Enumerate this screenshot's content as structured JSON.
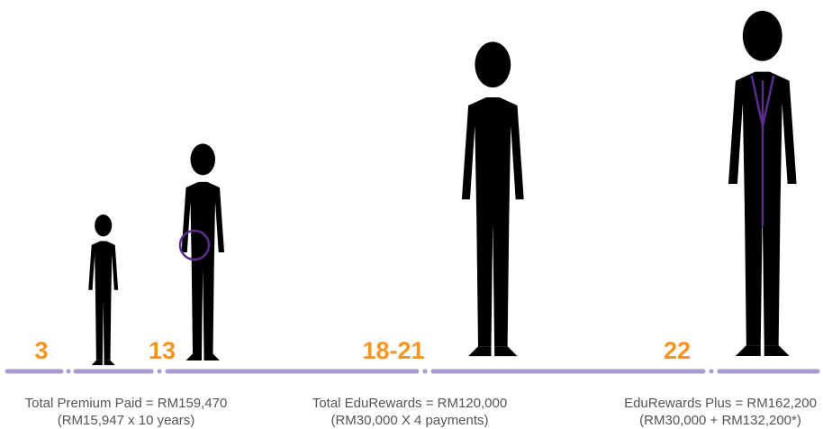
{
  "milestones": [
    {
      "age": "3"
    },
    {
      "age": "13"
    },
    {
      "age": "18-21"
    },
    {
      "age": "22"
    }
  ],
  "captions": [
    {
      "line1": "Total Premium Paid = RM159,470",
      "line2": "(RM15,947 x 10 years)"
    },
    {
      "line1": "Total EduRewards = RM120,000",
      "line2": "(RM30,000 X 4 payments)"
    },
    {
      "line1": "EduRewards Plus = RM162,200",
      "line2": "(RM30,000 + RM132,200*)"
    }
  ]
}
